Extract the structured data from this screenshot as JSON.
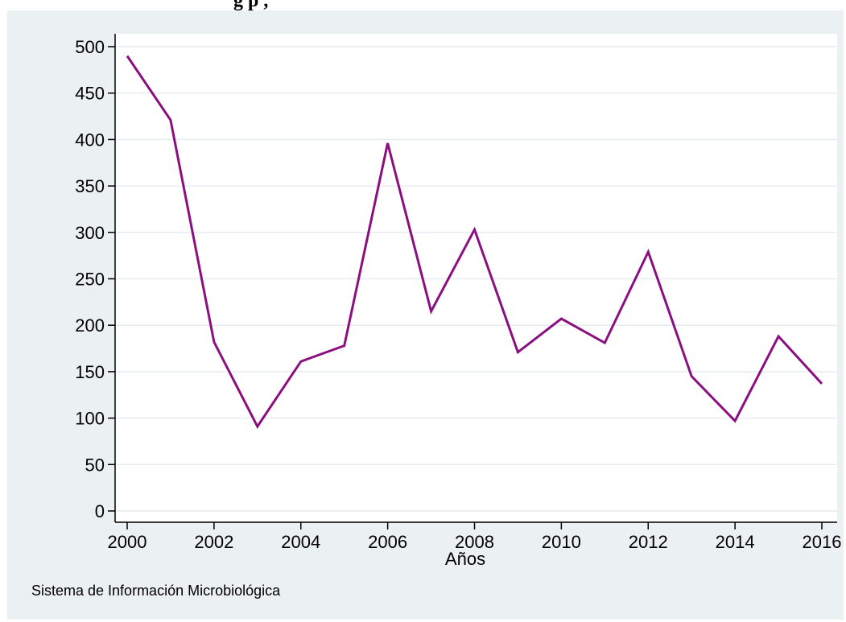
{
  "header": {
    "title_fragment": "g        p     ,"
  },
  "source_note": "Sistema de Información Microbiológica",
  "colors": {
    "panel_background": "#ebf0f3",
    "plot_background": "#ffffff",
    "line": "#8b0f80",
    "grid": "#e6edf1"
  },
  "chart_data": {
    "type": "line",
    "title": "",
    "xlabel": "Años",
    "ylabel": "",
    "x": [
      2000,
      2001,
      2002,
      2003,
      2004,
      2005,
      2006,
      2007,
      2008,
      2009,
      2010,
      2011,
      2012,
      2013,
      2014,
      2015,
      2016
    ],
    "series": [
      {
        "values": [
          490,
          421,
          182,
          91,
          161,
          178,
          396,
          215,
          303,
          171,
          207,
          181,
          279,
          145,
          97,
          188,
          137
        ]
      }
    ],
    "xlim": [
      2000,
      2016
    ],
    "ylim": [
      0,
      500
    ],
    "x_ticks": [
      2000,
      2002,
      2004,
      2006,
      2008,
      2010,
      2012,
      2014,
      2016
    ],
    "y_ticks": [
      0,
      50,
      100,
      150,
      200,
      250,
      300,
      350,
      400,
      450,
      500
    ],
    "grid": true,
    "legend": "none"
  }
}
